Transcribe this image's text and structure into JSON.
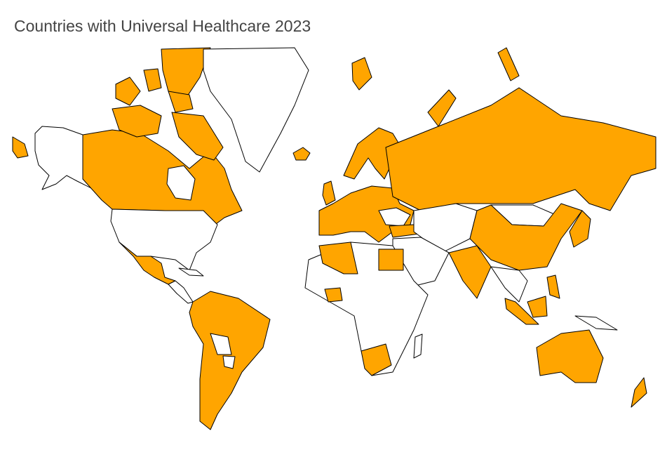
{
  "title": "Countries with Universal Healthcare 2023",
  "highlight_color": "#ffa500",
  "base_color": "#ffffff",
  "border_color": "#000000"
}
